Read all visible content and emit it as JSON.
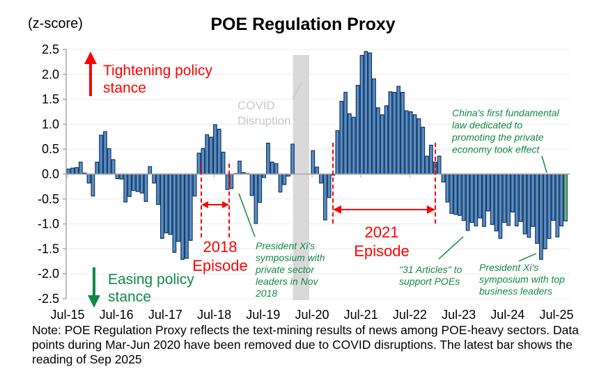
{
  "chart_data": {
    "type": "bar",
    "title": "POE Regulation Proxy",
    "ylabel": "(z-score)",
    "xlabel": "",
    "ylim": [
      -2.5,
      2.5
    ],
    "yticks": [
      "2.5",
      "2.0",
      "1.5",
      "1.0",
      "0.5",
      "0.0",
      "-0.5",
      "-1.0",
      "-1.5",
      "-2.0",
      "-2.5"
    ],
    "ytick_values": [
      2.5,
      2.0,
      1.5,
      1.0,
      0.5,
      0.0,
      -0.5,
      -1.0,
      -1.5,
      -2.0,
      -2.5
    ],
    "xticks": [
      "Jul-15",
      "Jul-16",
      "Jul-17",
      "Jul-18",
      "Jul-19",
      "Jul-20",
      "Jul-21",
      "Jul-22",
      "Jul-23",
      "Jul-24",
      "Jul-25"
    ],
    "grid": true,
    "start_month": "Jul-2015",
    "end_month": "Sep-2025",
    "excluded_months": [
      "Mar-2020",
      "Apr-2020",
      "May-2020",
      "Jun-2020"
    ],
    "series": [
      {
        "name": "POE Regulation Proxy",
        "color": "#5b8ec6",
        "last_bar_color": "#6fb86f",
        "values": [
          0.1,
          0.12,
          0.13,
          0.24,
          0.02,
          -0.18,
          -0.44,
          0.24,
          0.78,
          0.85,
          0.51,
          0.29,
          -0.09,
          -0.1,
          -0.56,
          -0.45,
          -0.33,
          -0.35,
          -0.38,
          -0.55,
          0.15,
          -0.18,
          -0.61,
          -1.29,
          -1.18,
          -1.21,
          -1.57,
          -1.35,
          -1.71,
          -1.69,
          -1.33,
          -0.44,
          0.42,
          0.51,
          0.79,
          0.74,
          0.99,
          0.9,
          0.44,
          -0.31,
          -0.29,
          0.01,
          0.26,
          0.03,
          0.01,
          -0.43,
          -0.99,
          -0.57,
          -0.07,
          0.62,
          0.24,
          0.21,
          -0.36,
          -0.21,
          -0.04,
          0.6,
          0.47,
          0.14,
          -0.18,
          -0.92,
          -0.47,
          -0.02,
          0.87,
          1.46,
          1.64,
          1.21,
          1.14,
          1.78,
          2.38,
          2.46,
          2.43,
          1.91,
          1.33,
          1.19,
          1.37,
          1.65,
          1.64,
          1.76,
          1.64,
          1.27,
          1.25,
          1.19,
          1.11,
          0.94,
          0.36,
          0.58,
          0.24,
          0.36,
          -0.16,
          -0.56,
          -0.79,
          -0.81,
          -0.83,
          -0.93,
          -1.13,
          -0.97,
          -1.04,
          -0.88,
          -1.05,
          -0.74,
          -1.01,
          -1.14,
          -1.29,
          -0.97,
          -1.03,
          -0.76,
          -1.04,
          -0.95,
          -1.2,
          -1.27,
          -1.05,
          -1.39,
          -1.71,
          -1.5,
          -1.29,
          -0.93,
          -1.26,
          -1.04,
          -0.94
        ]
      }
    ],
    "annotations": {
      "tightening": [
        "Tightening policy",
        "stance"
      ],
      "easing": [
        "Easing policy",
        "stance"
      ],
      "covid": [
        "COVID",
        "Disruption"
      ],
      "episode_2018": [
        "2018",
        "Episode"
      ],
      "episode_2021": [
        "2021",
        "Episode"
      ],
      "xi_2018": [
        "President Xi's",
        "symposium with",
        "private sector",
        "leaders in Nov",
        "2018"
      ],
      "articles_31": [
        "\"31 Articles\" to",
        "support POEs"
      ],
      "xi_2025": [
        "President Xi's",
        "symposium with top",
        "business leaders"
      ],
      "law": [
        "China's first fundamental",
        "law dedicated to",
        "promoting the private",
        "economy took effect"
      ]
    },
    "colors": {
      "tightening": "#ff0000",
      "easing": "#0f8a45",
      "episode": "#ff0000",
      "annotation": "#0f8a45",
      "covid_band": "#d9d9d9"
    }
  },
  "note": "Note: POE Regulation Proxy reflects the text-mining results of news among POE-heavy sectors. Data points during Mar-Jun 2020 have been removed due to COVID disruptions. The latest bar shows the reading of Sep 2025"
}
